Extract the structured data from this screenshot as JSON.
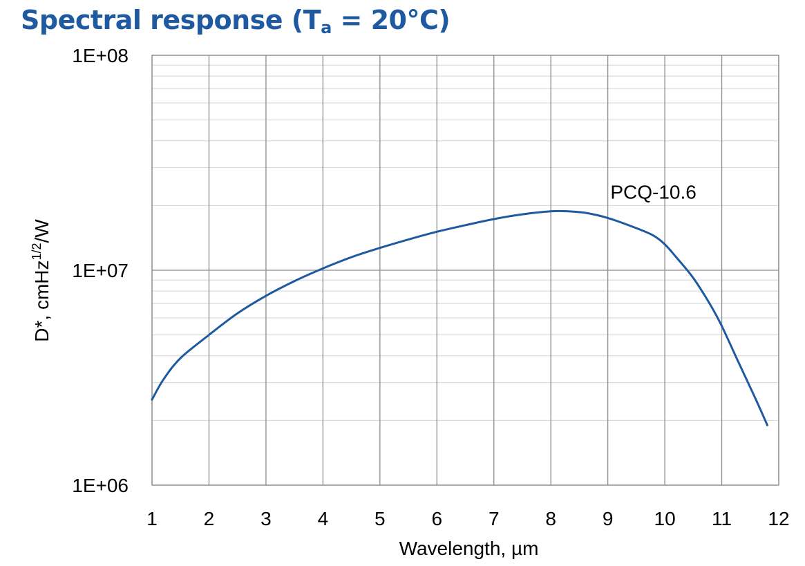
{
  "title": {
    "prefix": "Spectral response (T",
    "subscript": "a",
    "suffix": " = 20°C)",
    "color": "#1f5aa0"
  },
  "chart_data": {
    "type": "line",
    "xlabel": "Wavelength, µm",
    "ylabel": {
      "main": "D*, cmHz",
      "superscript": "1/2",
      "tail": "/W"
    },
    "xlim": [
      1,
      12
    ],
    "ylim": [
      1000000,
      100000000
    ],
    "yscale": "log",
    "grid": true,
    "x_ticks": [
      "1",
      "2",
      "3",
      "4",
      "5",
      "6",
      "7",
      "8",
      "9",
      "10",
      "11",
      "12"
    ],
    "y_ticks": [
      {
        "value": 1000000,
        "label": "1E+06"
      },
      {
        "value": 10000000,
        "label": "1E+07"
      },
      {
        "value": 100000000,
        "label": "1E+08"
      }
    ],
    "series": [
      {
        "name": "PCQ-10.6",
        "color": "#1f5aa0",
        "x": [
          1.0,
          1.2,
          1.5,
          2.0,
          2.5,
          3.0,
          3.5,
          4.0,
          4.5,
          5.0,
          5.5,
          6.0,
          6.5,
          7.0,
          7.5,
          8.0,
          8.3,
          8.6,
          9.0,
          9.5,
          9.8,
          10.0,
          10.2,
          10.5,
          10.8,
          11.0,
          11.3,
          11.6,
          11.8
        ],
        "values": [
          2500000,
          3100000,
          3900000,
          5000000,
          6300000,
          7600000,
          8900000,
          10200000,
          11500000,
          12700000,
          13900000,
          15100000,
          16200000,
          17300000,
          18200000,
          18800000,
          18800000,
          18500000,
          17500000,
          15700000,
          14500000,
          13200000,
          11500000,
          9200000,
          6900000,
          5500000,
          3700000,
          2500000,
          1900000
        ]
      }
    ],
    "annotations": [
      {
        "text": "PCQ-10.6",
        "x": 9.8,
        "y": 21500000
      }
    ]
  }
}
